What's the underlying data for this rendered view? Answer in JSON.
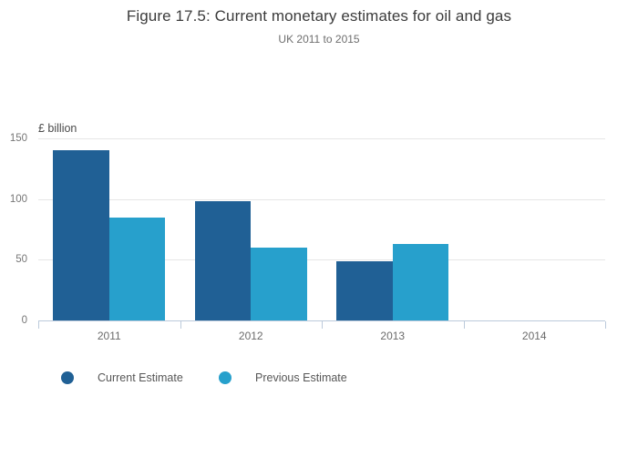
{
  "header": {
    "title": "Figure 17.5: Current monetary estimates for oil and gas",
    "subtitle": "UK 2011 to 2015"
  },
  "chart_data": {
    "type": "bar",
    "categories": [
      "2011",
      "2012",
      "2013",
      "2014"
    ],
    "series": [
      {
        "name": "Current Estimate",
        "color": "#206095",
        "values": [
          140,
          98,
          49,
          null
        ]
      },
      {
        "name": "Previous Estimate",
        "color": "#27A0CC",
        "values": [
          85,
          60,
          63,
          null
        ]
      }
    ],
    "title": "Figure 17.5: Current monetary estimates for oil and gas",
    "subtitle": "UK 2011 to 2015",
    "xlabel": "",
    "ylabel": "£ billion",
    "yticks": [
      0,
      50,
      100,
      150
    ],
    "ylim": [
      0,
      150
    ],
    "grid": true,
    "legend_position": "bottom"
  },
  "colors": {
    "grid": "#e6e6e6",
    "axis": "#bccadb",
    "title_text": "#3b3b3b",
    "subtitle_text": "#6e6e6e",
    "tick_text": "#767676"
  }
}
